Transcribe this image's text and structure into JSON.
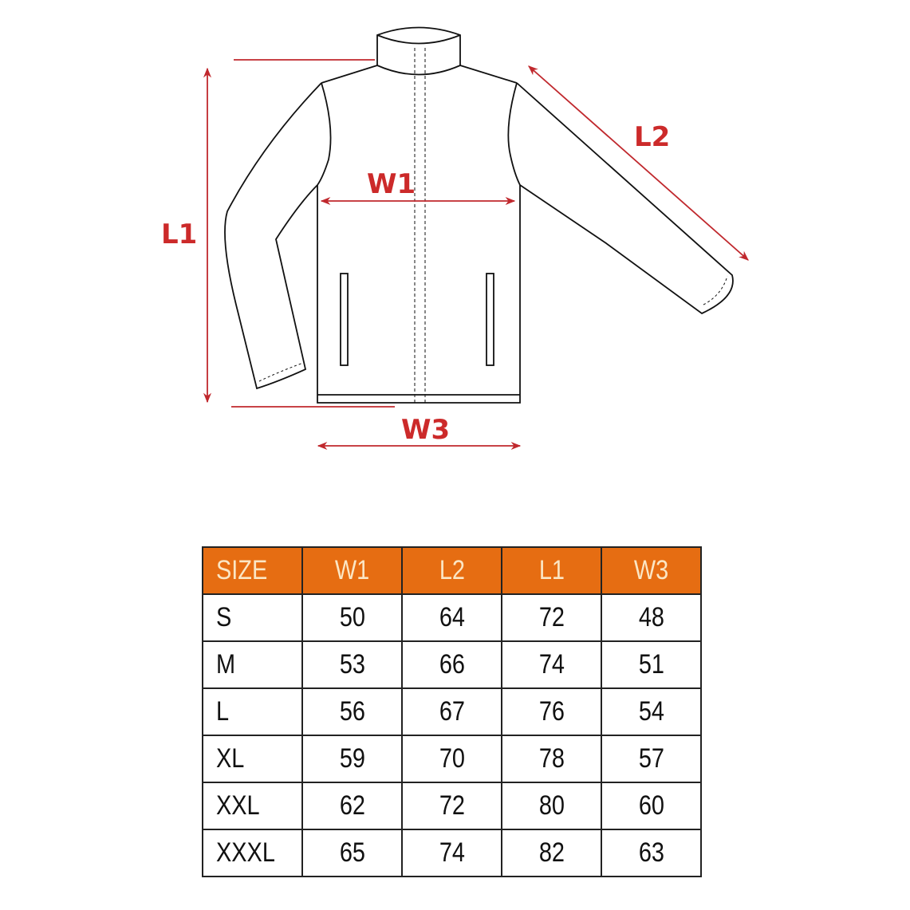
{
  "diagram": {
    "labels": {
      "l1": "L1",
      "l2": "L2",
      "w1": "W1",
      "w3": "W3"
    },
    "annotation_color": "#cc2a2a"
  },
  "table": {
    "header_color": "#e66d12",
    "headers": [
      "SIZE",
      "W1",
      "L2",
      "L1",
      "W3"
    ],
    "rows": [
      [
        "S",
        "50",
        "64",
        "72",
        "48"
      ],
      [
        "M",
        "53",
        "66",
        "74",
        "51"
      ],
      [
        "L",
        "56",
        "67",
        "76",
        "54"
      ],
      [
        "XL",
        "59",
        "70",
        "78",
        "57"
      ],
      [
        "XXL",
        "62",
        "72",
        "80",
        "60"
      ],
      [
        "XXXL",
        "65",
        "74",
        "82",
        "63"
      ]
    ]
  }
}
